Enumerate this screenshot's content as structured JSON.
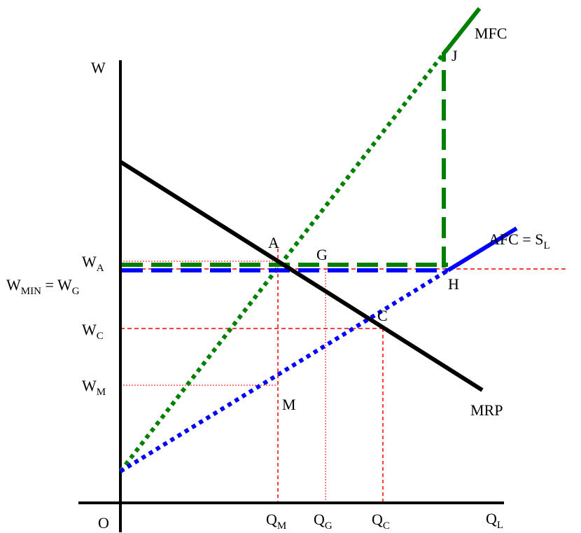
{
  "axes": {
    "y_label": "W",
    "x_label_main": "Q",
    "x_label_sub": "L",
    "origin": "O"
  },
  "curves": {
    "mrp": "MRP",
    "mfc": "MFC",
    "afc_main": "AFC = S",
    "afc_sub": "L"
  },
  "wage_labels": {
    "w_a_main": "W",
    "w_a_sub": "A",
    "w_min_main": "W",
    "w_min_sub": "MIN",
    "w_min_eq": " = W",
    "w_g_sub": "G",
    "w_c_main": "W",
    "w_c_sub": "C",
    "w_m_main": "W",
    "w_m_sub": "M"
  },
  "quantity_labels": {
    "q_m_main": "Q",
    "q_m_sub": "M",
    "q_g_main": "Q",
    "q_g_sub": "G",
    "q_c_main": "Q",
    "q_c_sub": "C"
  },
  "points": {
    "a": "A",
    "g": "G",
    "c": "C",
    "h": "H",
    "j": "J",
    "m": "M"
  },
  "colors": {
    "axis": "#000000",
    "mrp": "#000000",
    "mfc": "#008000",
    "afc": "#0000ff",
    "guide": "#ff0000"
  }
}
